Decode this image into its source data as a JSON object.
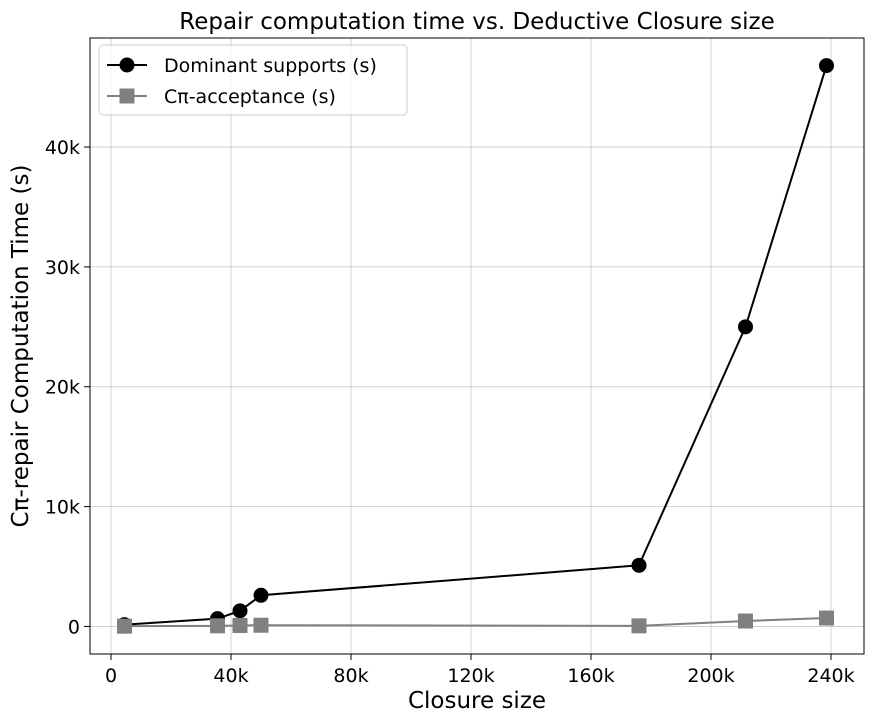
{
  "chart_data": {
    "type": "line",
    "title": "Repair computation time vs. Deductive Closure size",
    "xlabel": "Closure size",
    "ylabel": "Cπ-repair Computation Time (s)",
    "xlim": [
      -7000,
      251000
    ],
    "ylim": [
      -2300,
      49100
    ],
    "grid": true,
    "legend_position": "top-left",
    "x_ticks": [
      {
        "value": 0,
        "label": "0"
      },
      {
        "value": 40000,
        "label": "40k"
      },
      {
        "value": 80000,
        "label": "80k"
      },
      {
        "value": 120000,
        "label": "120k"
      },
      {
        "value": 160000,
        "label": "160k"
      },
      {
        "value": 200000,
        "label": "200k"
      },
      {
        "value": 240000,
        "label": "240k"
      }
    ],
    "y_ticks": [
      {
        "value": 0,
        "label": "0"
      },
      {
        "value": 10000,
        "label": "10k"
      },
      {
        "value": 20000,
        "label": "20k"
      },
      {
        "value": 30000,
        "label": "30k"
      },
      {
        "value": 40000,
        "label": "40k"
      }
    ],
    "series": [
      {
        "name": "Dominant supports (s)",
        "color": "#000000",
        "marker": "circle",
        "points": [
          {
            "x": 4500,
            "y": 150
          },
          {
            "x": 35500,
            "y": 650
          },
          {
            "x": 43000,
            "y": 1300
          },
          {
            "x": 50000,
            "y": 2600
          },
          {
            "x": 176000,
            "y": 5100
          },
          {
            "x": 211500,
            "y": 25000
          },
          {
            "x": 238500,
            "y": 46800
          }
        ]
      },
      {
        "name": "Cπ-acceptance (s)",
        "color": "#808080",
        "marker": "square",
        "points": [
          {
            "x": 4500,
            "y": 20
          },
          {
            "x": 35500,
            "y": 50
          },
          {
            "x": 43000,
            "y": 80
          },
          {
            "x": 50000,
            "y": 100
          },
          {
            "x": 176000,
            "y": 50
          },
          {
            "x": 211500,
            "y": 450
          },
          {
            "x": 238500,
            "y": 700
          }
        ]
      }
    ]
  }
}
